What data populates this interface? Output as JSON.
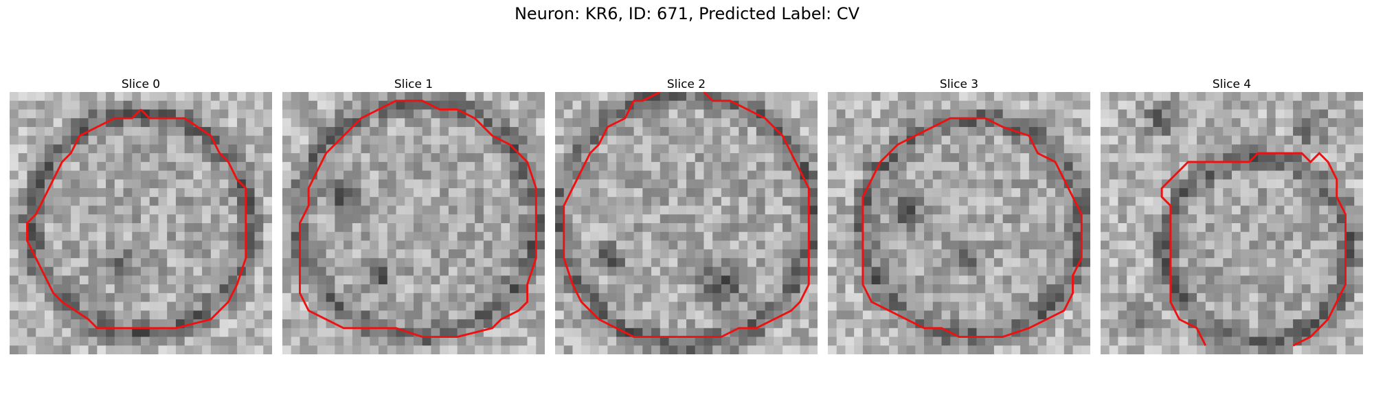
{
  "figure": {
    "title": "Neuron: KR6, ID: 671, Predicted Label: CV",
    "contour_color": "#ee1111"
  },
  "panels": [
    {
      "title": "Slice 0"
    },
    {
      "title": "Slice 1"
    },
    {
      "title": "Slice 2"
    },
    {
      "title": "Slice 3"
    },
    {
      "title": "Slice 4"
    }
  ]
}
